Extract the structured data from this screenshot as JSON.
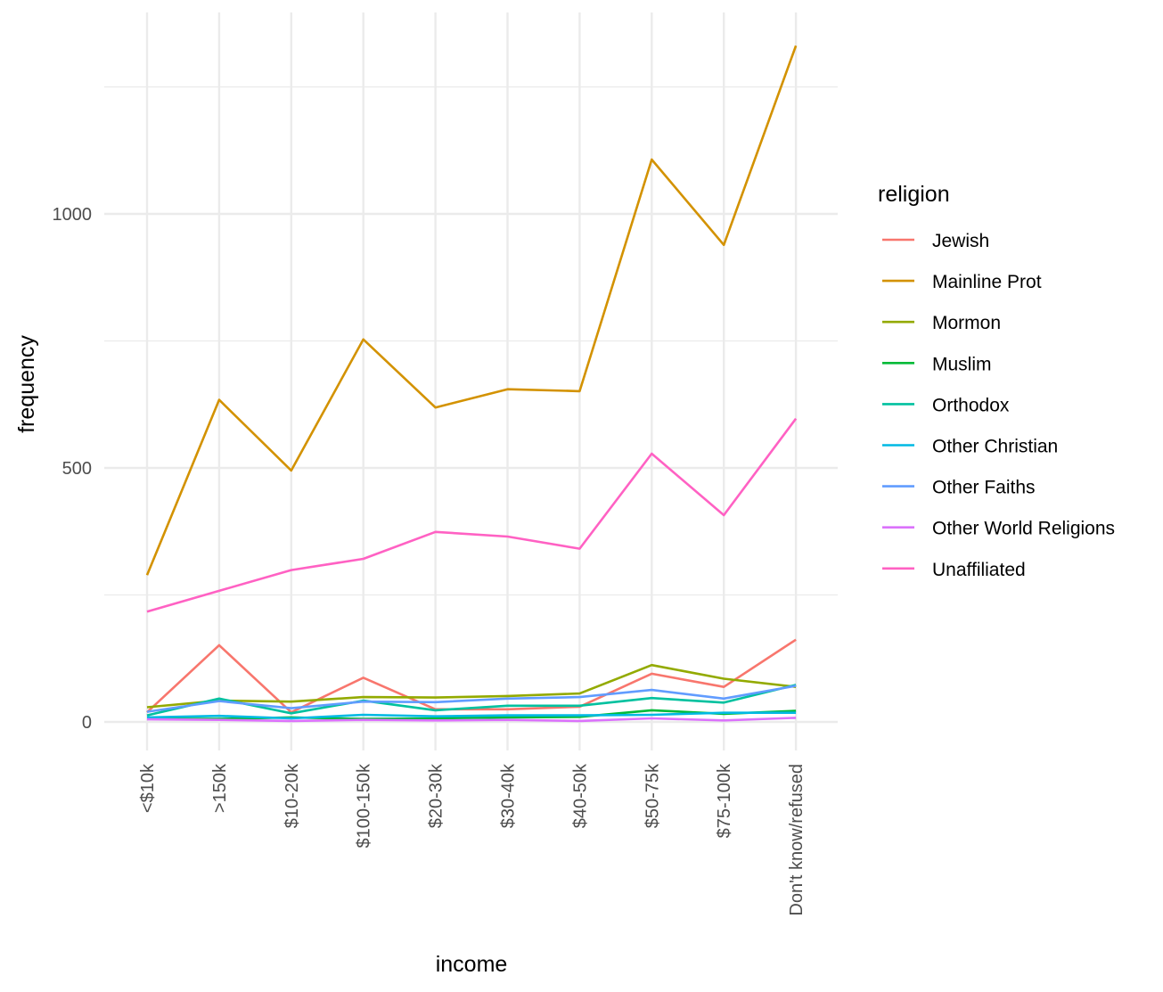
{
  "chart_data": {
    "type": "line",
    "xlabel": "income",
    "ylabel": "frequency",
    "legend_title": "religion",
    "legend_position": "right",
    "grid": true,
    "ylim": [
      -50,
      1380
    ],
    "y_ticks": [
      0,
      500,
      1000
    ],
    "categories": [
      "<$10k",
      ">150k",
      "$10-20k",
      "$100-150k",
      "$20-30k",
      "$30-40k",
      "$40-50k",
      "$50-75k",
      "$75-100k",
      "Don't know/refused"
    ],
    "series": [
      {
        "name": "Jewish",
        "color": "#F8766D",
        "values": [
          19,
          151,
          19,
          87,
          25,
          25,
          30,
          95,
          69,
          162
        ]
      },
      {
        "name": "Mainline Prot",
        "color": "#D39200",
        "values": [
          289,
          634,
          495,
          753,
          619,
          655,
          651,
          1107,
          939,
          1331
        ]
      },
      {
        "name": "Mormon",
        "color": "#93AA00",
        "values": [
          29,
          42,
          40,
          49,
          48,
          51,
          56,
          112,
          85,
          69
        ]
      },
      {
        "name": "Muslim",
        "color": "#00BA38",
        "values": [
          6,
          6,
          9,
          6,
          7,
          9,
          10,
          23,
          16,
          22
        ]
      },
      {
        "name": "Orthodox",
        "color": "#00C19F",
        "values": [
          13,
          46,
          17,
          42,
          23,
          32,
          32,
          47,
          38,
          73
        ]
      },
      {
        "name": "Other Christian",
        "color": "#00B9E3",
        "values": [
          9,
          12,
          7,
          14,
          11,
          13,
          13,
          14,
          18,
          18
        ]
      },
      {
        "name": "Other Faiths",
        "color": "#619CFF",
        "values": [
          20,
          41,
          27,
          40,
          39,
          46,
          49,
          63,
          46,
          71
        ]
      },
      {
        "name": "Other World Religions",
        "color": "#DB72FB",
        "values": [
          5,
          4,
          2,
          4,
          3,
          4,
          2,
          7,
          3,
          8
        ]
      },
      {
        "name": "Unaffiliated",
        "color": "#FF61C3",
        "values": [
          217,
          258,
          299,
          321,
          374,
          365,
          341,
          528,
          407,
          597
        ]
      }
    ]
  }
}
